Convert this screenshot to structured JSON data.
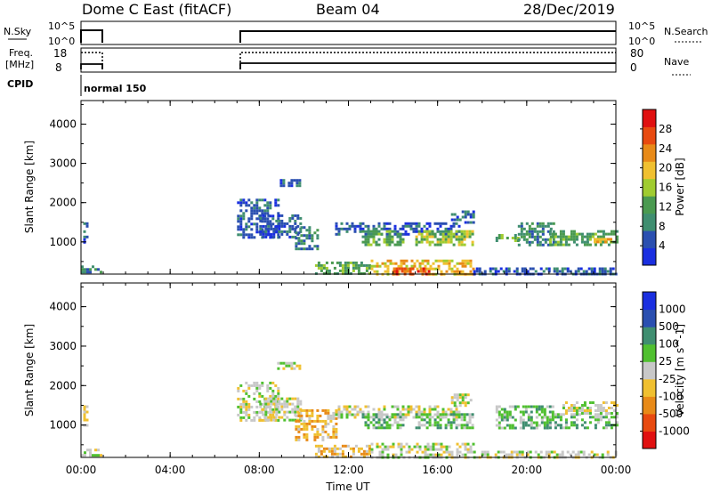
{
  "header": {
    "station": "Dome C East (fitACF)",
    "beam": "Beam 04",
    "date": "28/Dec/2019"
  },
  "mini_panels": {
    "nsky_label": "N.Sky",
    "nsky_ticks": [
      "10^5",
      "10^0"
    ],
    "nsearch_label": "N.Search",
    "nsearch_ticks": [
      "10^5",
      "10^0"
    ],
    "freq_label_1": "Freq.",
    "freq_label_2": "[MHz]",
    "freq_ticks": [
      "18",
      "8"
    ],
    "nave_label": "Nave",
    "nave_ticks": [
      "80",
      "0"
    ],
    "cpid_label": "CPID",
    "cpid_value": "normal 150"
  },
  "colors": {
    "power": [
      "#1a2fe0",
      "#2a4fb0",
      "#3f8e70",
      "#4a9a50",
      "#a0cc30",
      "#f0c030",
      "#e88a18",
      "#e84a10",
      "#e01010"
    ],
    "velocity": [
      "#e01010",
      "#e84a10",
      "#e88a18",
      "#f0c030",
      "#c8c8c8",
      "#50c030",
      "#3f8e70",
      "#2a4fb0",
      "#1a2fe0"
    ]
  },
  "chart_data": [
    {
      "type": "heatmap",
      "title": "",
      "xlabel": "",
      "ylabel": "Slant Range [km]",
      "x_ticks": [
        "00:00",
        "04:00",
        "08:00",
        "12:00",
        "16:00",
        "20:00",
        "00:00"
      ],
      "y_ticks": [
        "1000",
        "2000",
        "3000",
        "4000"
      ],
      "ylim": [
        180,
        4600
      ],
      "xlim_hours": [
        0,
        24
      ],
      "colorbar_label": "Power [dB]",
      "colorbar_ticks": [
        "4",
        "8",
        "12",
        "16",
        "20",
        "24",
        "28"
      ],
      "colorbar_range": [
        0,
        32
      ],
      "regions": [
        {
          "t0": 0.0,
          "t1": 0.9,
          "r0": 200,
          "r1": 400,
          "value": 10
        },
        {
          "t0": 0.1,
          "t1": 0.3,
          "r0": 1000,
          "r1": 1500,
          "value": 6
        },
        {
          "t0": 7.0,
          "t1": 8.8,
          "r0": 1100,
          "r1": 2100,
          "value": 6
        },
        {
          "t0": 8.0,
          "t1": 9.8,
          "r0": 1100,
          "r1": 1700,
          "value": 6
        },
        {
          "t0": 8.8,
          "t1": 9.8,
          "r0": 2400,
          "r1": 2600,
          "value": 5
        },
        {
          "t0": 9.6,
          "t1": 10.6,
          "r0": 800,
          "r1": 1400,
          "value": 8
        },
        {
          "t0": 10.5,
          "t1": 13.0,
          "r0": 200,
          "r1": 500,
          "value": 14
        },
        {
          "t0": 11.4,
          "t1": 17.0,
          "r0": 1200,
          "r1": 1500,
          "value": 5
        },
        {
          "t0": 12.6,
          "t1": 14.4,
          "r0": 900,
          "r1": 1300,
          "value": 14
        },
        {
          "t0": 13.0,
          "t1": 17.6,
          "r0": 200,
          "r1": 550,
          "value": 18
        },
        {
          "t0": 14.0,
          "t1": 15.6,
          "r0": 200,
          "r1": 350,
          "value": 25
        },
        {
          "t0": 15.0,
          "t1": 17.6,
          "r0": 900,
          "r1": 1300,
          "value": 16
        },
        {
          "t0": 16.6,
          "t1": 17.6,
          "r0": 1500,
          "r1": 1800,
          "value": 6
        },
        {
          "t0": 17.6,
          "t1": 24.0,
          "r0": 200,
          "r1": 350,
          "value": 5
        },
        {
          "t0": 18.6,
          "t1": 19.6,
          "r0": 1000,
          "r1": 1200,
          "value": 12
        },
        {
          "t0": 19.6,
          "t1": 21.2,
          "r0": 900,
          "r1": 1500,
          "value": 9
        },
        {
          "t0": 21.0,
          "t1": 24.0,
          "r0": 950,
          "r1": 1300,
          "value": 11
        },
        {
          "t0": 23.0,
          "t1": 24.0,
          "r0": 1000,
          "r1": 1100,
          "value": 20
        }
      ]
    },
    {
      "type": "heatmap",
      "title": "",
      "xlabel": "Time UT",
      "ylabel": "Slant Range [km]",
      "x_ticks": [
        "00:00",
        "04:00",
        "08:00",
        "12:00",
        "16:00",
        "20:00",
        "00:00"
      ],
      "y_ticks": [
        "1000",
        "2000",
        "3000",
        "4000"
      ],
      "ylim": [
        180,
        4600
      ],
      "xlim_hours": [
        0,
        24
      ],
      "colorbar_label": "Velocity [m s^-1]",
      "colorbar_ticks": [
        "1000",
        "500",
        "100",
        "25",
        "-25",
        "-100",
        "-500",
        "-1000"
      ],
      "colorbar_range": [
        -1200,
        1200
      ],
      "regions": [
        {
          "t0": 0.0,
          "t1": 0.9,
          "r0": 200,
          "r1": 400,
          "value": 120
        },
        {
          "t0": 0.1,
          "t1": 0.3,
          "r0": 1000,
          "r1": 1500,
          "value": 60
        },
        {
          "t0": 7.0,
          "t1": 8.8,
          "r0": 1100,
          "r1": 2100,
          "value": 0
        },
        {
          "t0": 8.0,
          "t1": 9.8,
          "r0": 1100,
          "r1": 1700,
          "value": -60
        },
        {
          "t0": 8.8,
          "t1": 9.8,
          "r0": 2400,
          "r1": 2600,
          "value": 0
        },
        {
          "t0": 9.6,
          "t1": 11.4,
          "r0": 600,
          "r1": 1400,
          "value": -200
        },
        {
          "t0": 10.5,
          "t1": 13.0,
          "r0": 200,
          "r1": 500,
          "value": -150
        },
        {
          "t0": 11.4,
          "t1": 17.0,
          "r0": 1200,
          "r1": 1500,
          "value": 0
        },
        {
          "t0": 12.6,
          "t1": 14.4,
          "r0": 900,
          "r1": 1300,
          "value": 300
        },
        {
          "t0": 13.0,
          "t1": 17.6,
          "r0": 200,
          "r1": 550,
          "value": 120
        },
        {
          "t0": 15.0,
          "t1": 17.6,
          "r0": 900,
          "r1": 1300,
          "value": 300
        },
        {
          "t0": 16.6,
          "t1": 17.6,
          "r0": 1500,
          "r1": 1800,
          "value": 0
        },
        {
          "t0": 17.6,
          "t1": 24.0,
          "r0": 200,
          "r1": 350,
          "value": -60
        },
        {
          "t0": 18.6,
          "t1": 21.2,
          "r0": 900,
          "r1": 1500,
          "value": 300
        },
        {
          "t0": 21.0,
          "t1": 24.0,
          "r0": 950,
          "r1": 1300,
          "value": 300
        },
        {
          "t0": 21.6,
          "t1": 24.0,
          "r0": 1300,
          "r1": 1600,
          "value": 0
        }
      ]
    }
  ]
}
